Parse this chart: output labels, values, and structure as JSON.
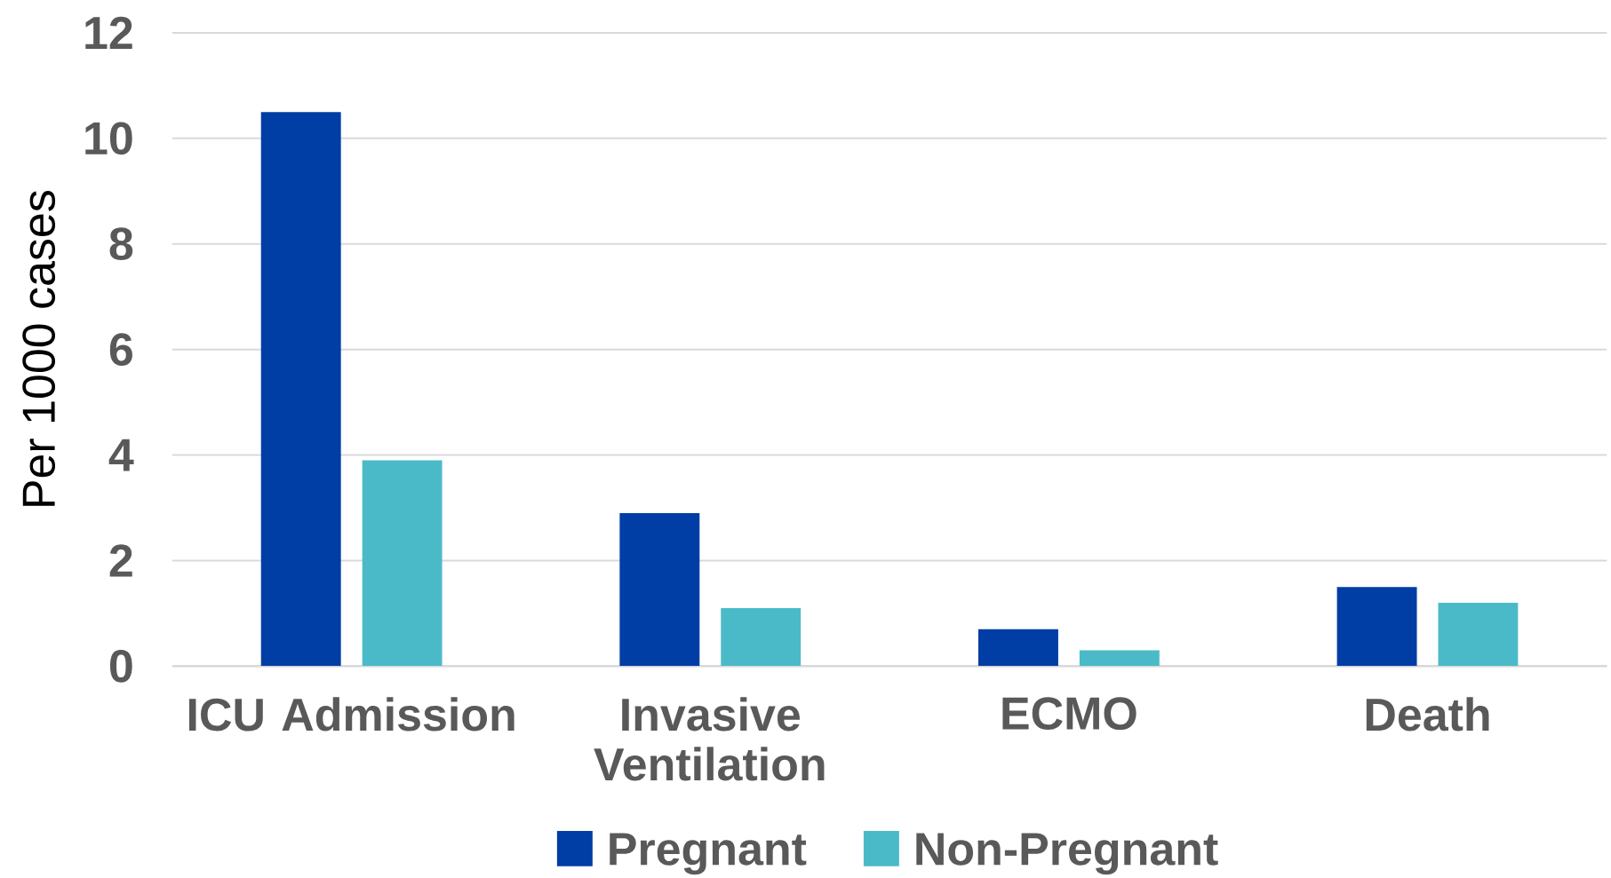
{
  "chart_data": {
    "type": "bar",
    "ylabel": "Per 1000 cases",
    "categories": [
      "ICU Admission",
      "Invasive Ventilation",
      "ECMO",
      "Death"
    ],
    "series": [
      {
        "name": "Pregnant",
        "color": "#003da5",
        "values": [
          10.5,
          2.9,
          0.7,
          1.5
        ]
      },
      {
        "name": "Non-Pregnant",
        "color": "#4bbac8",
        "values": [
          3.9,
          1.1,
          0.3,
          1.2
        ]
      }
    ],
    "ylim": [
      0,
      12
    ],
    "yticks": [
      0,
      2,
      4,
      6,
      8,
      10,
      12
    ],
    "grid": "y",
    "legend": "bottom"
  }
}
